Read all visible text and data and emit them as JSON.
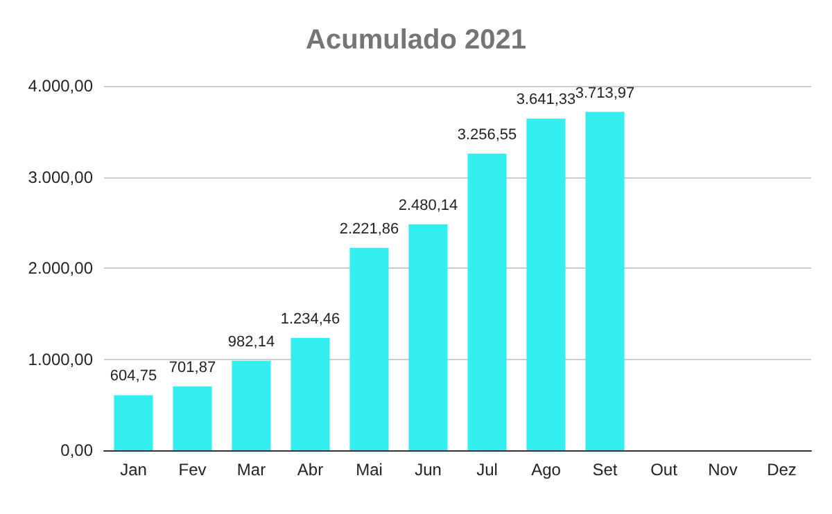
{
  "chart_data": {
    "type": "bar",
    "title": "Acumulado 2021",
    "categories": [
      "Jan",
      "Fev",
      "Mar",
      "Abr",
      "Mai",
      "Jun",
      "Jul",
      "Ago",
      "Set",
      "Out",
      "Nov",
      "Dez"
    ],
    "values": [
      604.75,
      701.87,
      982.14,
      1234.46,
      2221.86,
      2480.14,
      3256.55,
      3641.33,
      3713.97,
      null,
      null,
      null
    ],
    "value_labels": [
      "604,75",
      "701,87",
      "982,14",
      "1.234,46",
      "2.221,86",
      "2.480,14",
      "3.256,55",
      "3.641,33",
      "3.713,97",
      null,
      null,
      null
    ],
    "color": "#33eeee",
    "ylim": [
      0,
      4000
    ],
    "yticks": [
      {
        "value": 0,
        "label": "0,00"
      },
      {
        "value": 1000,
        "label": "1.000,00"
      },
      {
        "value": 2000,
        "label": "2.000,00"
      },
      {
        "value": 3000,
        "label": "3.000,00"
      },
      {
        "value": 4000,
        "label": "4.000,00"
      }
    ],
    "grid": "y"
  }
}
